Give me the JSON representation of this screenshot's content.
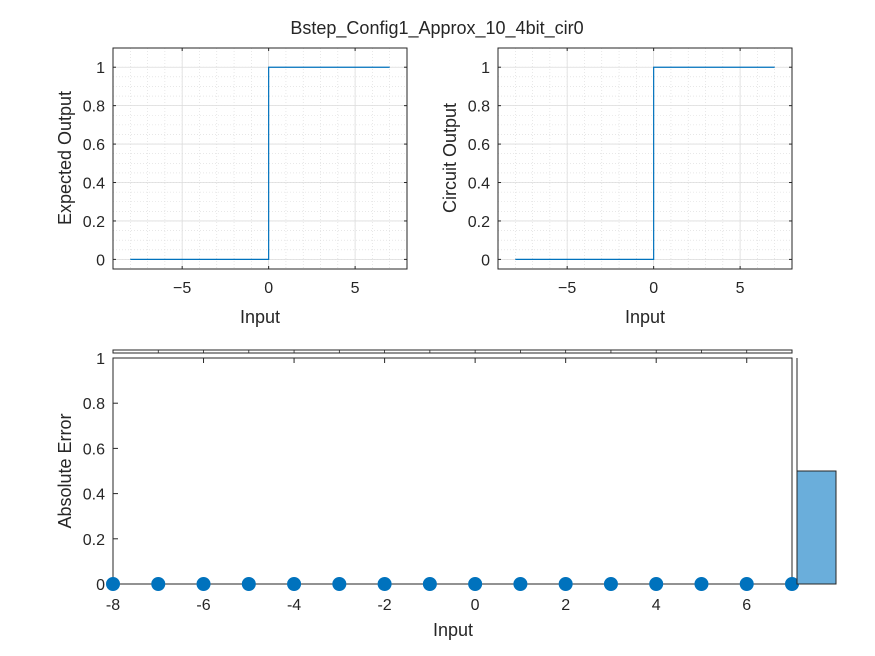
{
  "chart_data": [
    {
      "type": "line",
      "title": "Bstep_Config1_Approx_10_4bit_cir0",
      "xlabel": "Input",
      "ylabel": "Expected Output",
      "xlim": [
        -9,
        8
      ],
      "ylim": [
        -0.05,
        1.1
      ],
      "xticks": [
        -5,
        0,
        5
      ],
      "yticks": [
        0,
        0.2,
        0.4,
        0.6,
        0.8,
        1
      ],
      "ytick_labels": [
        "0",
        "0.2",
        "0.4",
        "0.6",
        "0.8",
        "1"
      ],
      "grid": true,
      "minor_grid": true,
      "series": [
        {
          "name": "Expected Output",
          "color": "#0072BD",
          "step": true,
          "x": [
            -8,
            -7,
            -6,
            -5,
            -4,
            -3,
            -2,
            -1,
            0,
            1,
            2,
            3,
            4,
            5,
            6,
            7
          ],
          "values": [
            0,
            0,
            0,
            0,
            0,
            0,
            0,
            0,
            1,
            1,
            1,
            1,
            1,
            1,
            1,
            1
          ]
        }
      ]
    },
    {
      "type": "line",
      "xlabel": "Input",
      "ylabel": "Circuit Output",
      "xlim": [
        -9,
        8
      ],
      "ylim": [
        -0.05,
        1.1
      ],
      "xticks": [
        -5,
        0,
        5
      ],
      "yticks": [
        0,
        0.2,
        0.4,
        0.6,
        0.8,
        1
      ],
      "ytick_labels": [
        "0",
        "0.2",
        "0.4",
        "0.6",
        "0.8",
        "1"
      ],
      "grid": true,
      "minor_grid": true,
      "series": [
        {
          "name": "Circuit Output",
          "color": "#0072BD",
          "step": true,
          "x": [
            -8,
            -7,
            -6,
            -5,
            -4,
            -3,
            -2,
            -1,
            0,
            1,
            2,
            3,
            4,
            5,
            6,
            7
          ],
          "values": [
            0,
            0,
            0,
            0,
            0,
            0,
            0,
            0,
            1,
            1,
            1,
            1,
            1,
            1,
            1,
            1
          ]
        }
      ]
    },
    {
      "type": "scatter",
      "xlabel": "Input",
      "ylabel": "Absolute Error",
      "xlim": [
        -8,
        7
      ],
      "ylim": [
        0,
        1
      ],
      "xticks": [
        -8,
        -6,
        -4,
        -2,
        0,
        2,
        4,
        6
      ],
      "yticks": [
        0,
        0.2,
        0.4,
        0.6,
        0.8,
        1
      ],
      "ytick_labels": [
        "0",
        "0.2",
        "0.4",
        "0.6",
        "0.8",
        "1"
      ],
      "grid": false,
      "series": [
        {
          "name": "Absolute Error",
          "color": "#0072BD",
          "x": [
            -8,
            -7,
            -6,
            -5,
            -4,
            -3,
            -2,
            -1,
            0,
            1,
            2,
            3,
            4,
            5,
            6,
            7
          ],
          "values": [
            0,
            0,
            0,
            0,
            0,
            0,
            0,
            0,
            0,
            0,
            0,
            0,
            0,
            0,
            0,
            0
          ]
        }
      ]
    },
    {
      "type": "bar",
      "orientation": "horizontal",
      "note": "side histogram of absolute error values",
      "categories": [
        "0"
      ],
      "values": [
        16
      ],
      "xlim": [
        0,
        32
      ],
      "ylim": [
        0,
        1
      ],
      "color": "#6AAEDB"
    }
  ]
}
